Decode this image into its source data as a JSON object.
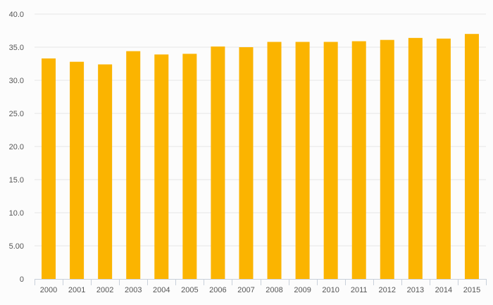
{
  "chart_data": {
    "type": "bar",
    "title": "",
    "xlabel": "",
    "ylabel": "",
    "categories": [
      "2000",
      "2001",
      "2002",
      "2003",
      "2004",
      "2005",
      "2006",
      "2007",
      "2008",
      "2009",
      "2010",
      "2011",
      "2012",
      "2013",
      "2014",
      "2015"
    ],
    "values": [
      33.3,
      32.8,
      32.4,
      34.4,
      33.9,
      34.0,
      35.1,
      35.0,
      35.8,
      35.8,
      35.8,
      35.9,
      36.1,
      36.4,
      36.3,
      37.0
    ],
    "ylim": [
      0,
      40
    ],
    "yticks": [
      {
        "value": 0,
        "label": "0"
      },
      {
        "value": 5,
        "label": "5.00"
      },
      {
        "value": 10,
        "label": "10.0"
      },
      {
        "value": 15,
        "label": "15.0"
      },
      {
        "value": 20,
        "label": "20.0"
      },
      {
        "value": 25,
        "label": "25.0"
      },
      {
        "value": 30,
        "label": "30.0"
      },
      {
        "value": 35,
        "label": "35.0"
      },
      {
        "value": 40,
        "label": "40.0"
      }
    ],
    "grid": true,
    "colors": {
      "bar": "#FBB400",
      "grid": "#e6e6e6",
      "axis": "#c8d0da",
      "text": "#555555"
    }
  }
}
